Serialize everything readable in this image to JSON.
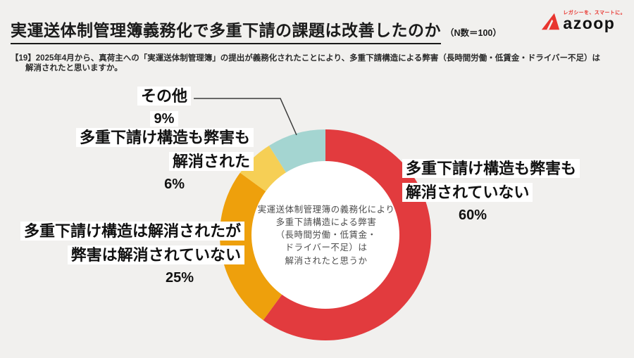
{
  "header": {
    "title": "実運送体制管理簿義務化で多重下請の課題は改善したのか",
    "n_label": "（N数＝100）"
  },
  "logo": {
    "tagline": "レガシーを、スマートに。",
    "name": "azoop",
    "brand_red": "#E8352F"
  },
  "question": {
    "line1": "【19】2025年4月から、真荷主への「実運送体制管理簿」の提出が義務化されたことにより、多重下請構造による弊害（長時間労働・低賃金・ドライバー不足）は",
    "line2": "解消されたと思いますか。"
  },
  "labels": {
    "red": {
      "line1": "多重下請け構造も弊害も",
      "line2": "解消されていない",
      "pct": "60%"
    },
    "orange": {
      "line1": "多重下請け構造は解消されたが",
      "line2": "弊害は解消されていない",
      "pct": "25%"
    },
    "yellow": {
      "line1": "多重下請け構造も弊害も",
      "line2": "解消された",
      "pct": "6%"
    },
    "other": {
      "line1": "その他",
      "pct": "9%"
    }
  },
  "chart_data": {
    "type": "pie",
    "donut": true,
    "title": "実運送体制管理簿義務化で多重下請の課題は改善したのか",
    "n": "N数＝100",
    "start_angle_deg": 0,
    "direction": "clockwise",
    "segments": [
      {
        "label": "多重下請け構造も弊害も解消されていない",
        "value": 60,
        "color": "#E23B3E"
      },
      {
        "label": "多重下請け構造は解消されたが弊害は解消されていない",
        "value": 25,
        "color": "#EEA00C"
      },
      {
        "label": "多重下請け構造も弊害も解消された",
        "value": 6,
        "color": "#F6CF55"
      },
      {
        "label": "その他",
        "value": 9,
        "color": "#A4D5D1"
      }
    ],
    "center_text": "実運送体制管理簿の義務化により\n多重下請構造による弊害\n（長時間労働・低賃金・\nドライバー不足）は\n解消されたと思うか",
    "hole_color": "#FFFFFF",
    "background": "#F1F0EE"
  }
}
